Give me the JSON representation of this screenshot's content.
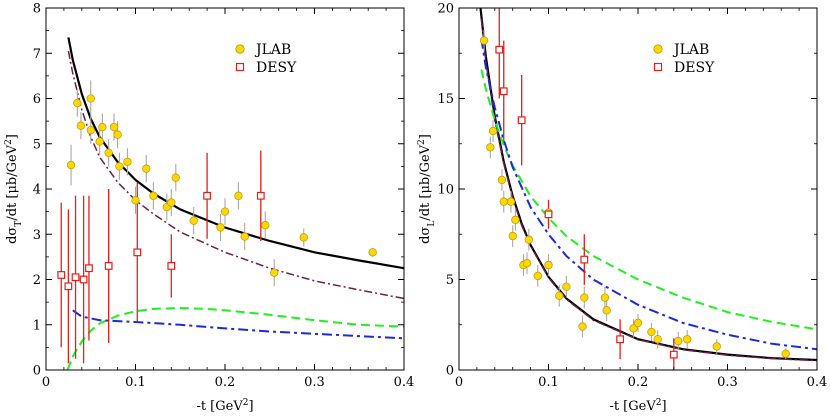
{
  "chart_data": [
    {
      "type": "scatter",
      "xlabel": "-t [GeV",
      "xlabel_sup": "2",
      "xlabel_close": "]",
      "ylabel": "dσ",
      "ylabel_sub": "T",
      "ylabel_rest": "/dt [μb/GeV",
      "ylabel_sup": "2",
      "ylabel_close": "]",
      "xlim": [
        0,
        0.4
      ],
      "ylim": [
        0,
        8
      ],
      "xticks": [
        0,
        0.1,
        0.2,
        0.3,
        0.4
      ],
      "xtick_labels": [
        "0",
        "0.1",
        "0.2",
        "0.3",
        "0.4"
      ],
      "yticks": [
        0,
        1,
        2,
        3,
        4,
        5,
        6,
        7,
        8
      ],
      "ytick_labels": [
        "0",
        "1",
        "2",
        "3",
        "4",
        "5",
        "6",
        "7",
        "8"
      ],
      "legend": [
        {
          "label": "JLAB",
          "marker": "circle",
          "color": "#ffd700"
        },
        {
          "label": "DESY",
          "marker": "square",
          "color": "#e0201b"
        }
      ],
      "series": [
        {
          "name": "JLAB",
          "marker": "circle",
          "color": "#ffd700",
          "err_color": "#a8a8a8",
          "points": [
            {
              "x": 0.028,
              "y": 4.53,
              "err": 0.45
            },
            {
              "x": 0.035,
              "y": 5.9,
              "err": 0.3
            },
            {
              "x": 0.039,
              "y": 5.4,
              "err": 0.3
            },
            {
              "x": 0.05,
              "y": 6.0,
              "err": 0.4
            },
            {
              "x": 0.05,
              "y": 5.3,
              "err": 0.3
            },
            {
              "x": 0.06,
              "y": 5.05,
              "err": 0.3
            },
            {
              "x": 0.063,
              "y": 5.37,
              "err": 0.3
            },
            {
              "x": 0.07,
              "y": 4.8,
              "err": 0.3
            },
            {
              "x": 0.076,
              "y": 5.37,
              "err": 0.3
            },
            {
              "x": 0.08,
              "y": 5.2,
              "err": 0.3
            },
            {
              "x": 0.082,
              "y": 4.5,
              "err": 0.3
            },
            {
              "x": 0.091,
              "y": 4.6,
              "err": 0.3
            },
            {
              "x": 0.1,
              "y": 3.75,
              "err": 0.3
            },
            {
              "x": 0.112,
              "y": 4.45,
              "err": 0.3
            },
            {
              "x": 0.12,
              "y": 3.85,
              "err": 0.3
            },
            {
              "x": 0.135,
              "y": 3.6,
              "err": 0.3
            },
            {
              "x": 0.14,
              "y": 3.7,
              "err": 0.3
            },
            {
              "x": 0.145,
              "y": 4.25,
              "err": 0.3
            },
            {
              "x": 0.165,
              "y": 3.3,
              "err": 0.3
            },
            {
              "x": 0.195,
              "y": 3.15,
              "err": 0.3
            },
            {
              "x": 0.2,
              "y": 3.5,
              "err": 0.3
            },
            {
              "x": 0.215,
              "y": 3.85,
              "err": 0.3
            },
            {
              "x": 0.222,
              "y": 2.95,
              "err": 0.3
            },
            {
              "x": 0.245,
              "y": 3.2,
              "err": 0.3
            },
            {
              "x": 0.255,
              "y": 2.15,
              "err": 0.3
            },
            {
              "x": 0.288,
              "y": 2.93,
              "err": 0.2
            },
            {
              "x": 0.365,
              "y": 2.6,
              "err": 0.1
            }
          ]
        },
        {
          "name": "DESY",
          "marker": "square",
          "color": "#e0201b",
          "err_color": "#e0201b",
          "points": [
            {
              "x": 0.017,
              "y": 2.1,
              "err": 1.6
            },
            {
              "x": 0.025,
              "y": 1.85,
              "err": 1.7
            },
            {
              "x": 0.033,
              "y": 2.05,
              "err": 1.8
            },
            {
              "x": 0.042,
              "y": 2.0,
              "err": 1.85
            },
            {
              "x": 0.048,
              "y": 2.25,
              "err": 1.6
            },
            {
              "x": 0.07,
              "y": 2.3,
              "err": 1.7
            },
            {
              "x": 0.102,
              "y": 2.6,
              "err": 1.55
            },
            {
              "x": 0.14,
              "y": 2.3,
              "err": 0.7
            },
            {
              "x": 0.18,
              "y": 3.85,
              "err": 0.95
            },
            {
              "x": 0.24,
              "y": 3.85,
              "err": 1.0
            }
          ]
        }
      ],
      "curves": [
        {
          "name": "total",
          "color": "#000000",
          "dash": "solid",
          "width": 2.2,
          "points": [
            [
              0.025,
              7.35
            ],
            [
              0.03,
              6.85
            ],
            [
              0.04,
              6.1
            ],
            [
              0.05,
              5.55
            ],
            [
              0.06,
              5.15
            ],
            [
              0.08,
              4.6
            ],
            [
              0.1,
              4.2
            ],
            [
              0.12,
              3.9
            ],
            [
              0.15,
              3.55
            ],
            [
              0.2,
              3.15
            ],
            [
              0.25,
              2.85
            ],
            [
              0.3,
              2.6
            ],
            [
              0.35,
              2.42
            ],
            [
              0.4,
              2.25
            ]
          ]
        },
        {
          "name": "dash-dot (maroon)",
          "color": "#6b1f4f",
          "dash": "8,3,2,3",
          "width": 1.5,
          "points": [
            [
              0.025,
              7.05
            ],
            [
              0.03,
              6.55
            ],
            [
              0.04,
              5.75
            ],
            [
              0.05,
              5.15
            ],
            [
              0.06,
              4.7
            ],
            [
              0.08,
              4.15
            ],
            [
              0.1,
              3.75
            ],
            [
              0.12,
              3.45
            ],
            [
              0.15,
              3.05
            ],
            [
              0.2,
              2.6
            ],
            [
              0.25,
              2.25
            ],
            [
              0.3,
              1.97
            ],
            [
              0.35,
              1.77
            ],
            [
              0.4,
              1.58
            ]
          ]
        },
        {
          "name": "dashed (green)",
          "color": "#22ee22",
          "dash": "9,5",
          "width": 2,
          "points": [
            [
              0.024,
              0.0
            ],
            [
              0.03,
              0.3
            ],
            [
              0.04,
              0.63
            ],
            [
              0.05,
              0.87
            ],
            [
              0.06,
              1.03
            ],
            [
              0.08,
              1.2
            ],
            [
              0.1,
              1.3
            ],
            [
              0.12,
              1.35
            ],
            [
              0.15,
              1.37
            ],
            [
              0.18,
              1.35
            ],
            [
              0.2,
              1.32
            ],
            [
              0.25,
              1.22
            ],
            [
              0.3,
              1.1
            ],
            [
              0.35,
              1.0
            ],
            [
              0.4,
              0.96
            ]
          ]
        },
        {
          "name": "dash-dot (blue)",
          "color": "#1a2bd8",
          "dash": "10,4,3,4",
          "width": 2,
          "points": [
            [
              0.03,
              1.32
            ],
            [
              0.04,
              1.18
            ],
            [
              0.06,
              1.1
            ],
            [
              0.08,
              1.08
            ],
            [
              0.1,
              1.06
            ],
            [
              0.15,
              1.0
            ],
            [
              0.2,
              0.92
            ],
            [
              0.25,
              0.85
            ],
            [
              0.3,
              0.8
            ],
            [
              0.35,
              0.75
            ],
            [
              0.4,
              0.7
            ]
          ]
        }
      ]
    },
    {
      "type": "scatter",
      "xlabel": "-t [GeV",
      "xlabel_sup": "2",
      "xlabel_close": "]",
      "ylabel": "dσ",
      "ylabel_sub": "L",
      "ylabel_rest": "/dt [μb/GeV",
      "ylabel_sup": "2",
      "ylabel_close": "]",
      "xlim": [
        0,
        0.4
      ],
      "ylim": [
        0,
        20
      ],
      "xticks": [
        0,
        0.1,
        0.2,
        0.3,
        0.4
      ],
      "xtick_labels": [
        "0",
        "0.1",
        "0.2",
        "0.3",
        "0.4"
      ],
      "yticks": [
        0,
        5,
        10,
        15,
        20
      ],
      "ytick_labels": [
        "0",
        "5",
        "10",
        "15",
        "20"
      ],
      "legend": [
        {
          "label": "JLAB",
          "marker": "circle",
          "color": "#ffd700"
        },
        {
          "label": "DESY",
          "marker": "square",
          "color": "#e0201b"
        }
      ],
      "series": [
        {
          "name": "JLAB",
          "marker": "circle",
          "color": "#ffd700",
          "err_color": "#a8a8a8",
          "points": [
            {
              "x": 0.028,
              "y": 18.2,
              "err": 0.6
            },
            {
              "x": 0.035,
              "y": 12.3,
              "err": 0.6
            },
            {
              "x": 0.038,
              "y": 13.2,
              "err": 0.6
            },
            {
              "x": 0.048,
              "y": 10.5,
              "err": 0.6
            },
            {
              "x": 0.05,
              "y": 9.3,
              "err": 0.6
            },
            {
              "x": 0.058,
              "y": 9.3,
              "err": 0.6
            },
            {
              "x": 0.06,
              "y": 7.4,
              "err": 0.6
            },
            {
              "x": 0.063,
              "y": 8.3,
              "err": 0.6
            },
            {
              "x": 0.072,
              "y": 5.8,
              "err": 0.6
            },
            {
              "x": 0.076,
              "y": 5.9,
              "err": 0.6
            },
            {
              "x": 0.078,
              "y": 7.2,
              "err": 0.6
            },
            {
              "x": 0.088,
              "y": 5.2,
              "err": 0.6
            },
            {
              "x": 0.1,
              "y": 8.7,
              "err": 0.6
            },
            {
              "x": 0.1,
              "y": 5.8,
              "err": 0.6
            },
            {
              "x": 0.112,
              "y": 4.1,
              "err": 0.6
            },
            {
              "x": 0.12,
              "y": 4.6,
              "err": 0.6
            },
            {
              "x": 0.138,
              "y": 2.4,
              "err": 0.6
            },
            {
              "x": 0.14,
              "y": 4.0,
              "err": 0.6
            },
            {
              "x": 0.163,
              "y": 4.0,
              "err": 0.6
            },
            {
              "x": 0.165,
              "y": 3.3,
              "err": 0.6
            },
            {
              "x": 0.195,
              "y": 2.3,
              "err": 0.5
            },
            {
              "x": 0.2,
              "y": 2.6,
              "err": 0.5
            },
            {
              "x": 0.215,
              "y": 2.1,
              "err": 0.5
            },
            {
              "x": 0.222,
              "y": 1.7,
              "err": 0.5
            },
            {
              "x": 0.245,
              "y": 1.6,
              "err": 0.5
            },
            {
              "x": 0.255,
              "y": 1.7,
              "err": 0.5
            },
            {
              "x": 0.288,
              "y": 1.3,
              "err": 0.4
            },
            {
              "x": 0.365,
              "y": 0.9,
              "err": 0.3
            }
          ]
        },
        {
          "name": "DESY",
          "marker": "square",
          "color": "#e0201b",
          "err_color": "#e0201b",
          "points": [
            {
              "x": 0.045,
              "y": 17.7,
              "err": 2.7
            },
            {
              "x": 0.05,
              "y": 15.4,
              "err": 2.8
            },
            {
              "x": 0.07,
              "y": 13.8,
              "err": 2.5
            },
            {
              "x": 0.1,
              "y": 8.6,
              "err": 0.8
            },
            {
              "x": 0.14,
              "y": 6.1,
              "err": 1.4
            },
            {
              "x": 0.18,
              "y": 1.7,
              "err": 1.1
            },
            {
              "x": 0.24,
              "y": 0.85,
              "err": 0.9
            }
          ]
        }
      ],
      "curves": [
        {
          "name": "total",
          "color": "#000000",
          "dash": "solid",
          "width": 2.2,
          "points": [
            [
              0.024,
              20.0
            ],
            [
              0.03,
              17.3
            ],
            [
              0.04,
              14.0
            ],
            [
              0.05,
              11.5
            ],
            [
              0.06,
              9.6
            ],
            [
              0.07,
              8.1
            ],
            [
              0.08,
              6.9
            ],
            [
              0.1,
              5.15
            ],
            [
              0.12,
              3.95
            ],
            [
              0.15,
              2.8
            ],
            [
              0.2,
              1.7
            ],
            [
              0.25,
              1.15
            ],
            [
              0.3,
              0.85
            ],
            [
              0.35,
              0.65
            ],
            [
              0.4,
              0.55
            ]
          ]
        },
        {
          "name": "dash-dot (maroon)",
          "color": "#6b1f4f",
          "dash": "8,3,2,3",
          "width": 1.5,
          "points": [
            [
              0.025,
              19.4
            ],
            [
              0.03,
              17.0
            ],
            [
              0.04,
              13.8
            ],
            [
              0.05,
              11.4
            ],
            [
              0.06,
              9.5
            ],
            [
              0.07,
              8.0
            ],
            [
              0.08,
              6.85
            ],
            [
              0.1,
              5.1
            ],
            [
              0.12,
              3.9
            ],
            [
              0.15,
              2.75
            ],
            [
              0.2,
              1.68
            ],
            [
              0.25,
              1.12
            ],
            [
              0.3,
              0.82
            ],
            [
              0.35,
              0.63
            ],
            [
              0.4,
              0.52
            ]
          ]
        },
        {
          "name": "dashed (green)",
          "color": "#22ee22",
          "dash": "9,5",
          "width": 2,
          "points": [
            [
              0.025,
              16.6
            ],
            [
              0.03,
              15.5
            ],
            [
              0.04,
              13.8
            ],
            [
              0.05,
              12.4
            ],
            [
              0.06,
              11.3
            ],
            [
              0.08,
              9.6
            ],
            [
              0.1,
              8.4
            ],
            [
              0.12,
              7.4
            ],
            [
              0.15,
              6.3
            ],
            [
              0.2,
              5.0
            ],
            [
              0.25,
              4.0
            ],
            [
              0.3,
              3.2
            ],
            [
              0.35,
              2.65
            ],
            [
              0.4,
              2.25
            ]
          ]
        },
        {
          "name": "dash-dot (blue)",
          "color": "#1a2bd8",
          "dash": "10,4,3,4",
          "width": 2,
          "points": [
            [
              0.025,
              18.3
            ],
            [
              0.03,
              16.7
            ],
            [
              0.04,
              14.5
            ],
            [
              0.05,
              12.7
            ],
            [
              0.06,
              11.2
            ],
            [
              0.08,
              9.0
            ],
            [
              0.1,
              7.5
            ],
            [
              0.12,
              6.3
            ],
            [
              0.15,
              5.0
            ],
            [
              0.2,
              3.6
            ],
            [
              0.25,
              2.6
            ],
            [
              0.3,
              1.95
            ],
            [
              0.35,
              1.45
            ],
            [
              0.4,
              1.15
            ]
          ]
        }
      ]
    }
  ]
}
